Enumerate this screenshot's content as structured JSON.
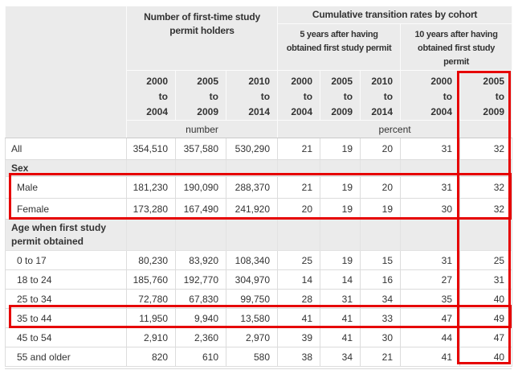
{
  "table": {
    "headers": {
      "number_group_lines": [
        "Number of first-time study",
        "permit holders"
      ],
      "rates_group": "Cumulative transition rates by cohort",
      "five_year_lines": [
        "5 years after having",
        "obtained first study permit"
      ],
      "ten_year_lines": [
        "10 years after having",
        "obtained first study",
        "permit"
      ],
      "year_columns": [
        {
          "start": "2000",
          "sep": "to",
          "end": "2004"
        },
        {
          "start": "2005",
          "sep": "to",
          "end": "2009"
        },
        {
          "start": "2010",
          "sep": "to",
          "end": "2014"
        },
        {
          "start": "2000",
          "sep": "to",
          "end": "2004"
        },
        {
          "start": "2005",
          "sep": "to",
          "end": "2009"
        },
        {
          "start": "2010",
          "sep": "to",
          "end": "2014"
        },
        {
          "start": "2000",
          "sep": "to",
          "end": "2004"
        },
        {
          "start": "2005",
          "sep": "to",
          "end": "2009"
        }
      ],
      "units": {
        "number": "number",
        "percent": "percent"
      }
    },
    "rows": [
      {
        "type": "data",
        "indent": false,
        "label": "All",
        "values": [
          "354,510",
          "357,580",
          "530,290",
          "21",
          "19",
          "20",
          "31",
          "32"
        ]
      },
      {
        "type": "group",
        "label": "Sex"
      },
      {
        "type": "data",
        "indent": true,
        "label": "Male",
        "values": [
          "181,230",
          "190,090",
          "288,370",
          "21",
          "19",
          "20",
          "31",
          "32"
        ]
      },
      {
        "type": "data",
        "indent": true,
        "label": "Female",
        "values": [
          "173,280",
          "167,490",
          "241,920",
          "20",
          "19",
          "19",
          "30",
          "32"
        ]
      },
      {
        "type": "group",
        "label": "Age when first study permit obtained"
      },
      {
        "type": "data",
        "indent": true,
        "label": "0 to 17",
        "values": [
          "80,230",
          "83,920",
          "108,340",
          "25",
          "19",
          "15",
          "31",
          "25"
        ]
      },
      {
        "type": "data",
        "indent": true,
        "label": "18 to 24",
        "values": [
          "185,760",
          "192,770",
          "304,970",
          "14",
          "14",
          "16",
          "27",
          "31"
        ]
      },
      {
        "type": "data",
        "indent": true,
        "label": "25 to 34",
        "values": [
          "72,780",
          "67,830",
          "99,750",
          "28",
          "31",
          "34",
          "35",
          "40"
        ]
      },
      {
        "type": "data",
        "indent": true,
        "label": "35 to 44",
        "values": [
          "11,950",
          "9,940",
          "13,580",
          "41",
          "41",
          "33",
          "47",
          "49"
        ]
      },
      {
        "type": "data",
        "indent": true,
        "label": "45 to 54",
        "values": [
          "2,910",
          "2,360",
          "2,970",
          "39",
          "41",
          "30",
          "44",
          "47"
        ]
      },
      {
        "type": "data",
        "indent": true,
        "label": "55 and older",
        "values": [
          "820",
          "610",
          "580",
          "38",
          "34",
          "21",
          "41",
          "40"
        ]
      }
    ]
  },
  "highlights": {
    "color": "#e60000",
    "boxes": [
      {
        "id": "hl-col",
        "target": "column-2005-to-2009-10-years"
      },
      {
        "id": "hl-sex",
        "target": "rows-male-female"
      },
      {
        "id": "hl-row35",
        "target": "row-35-to-44"
      }
    ]
  },
  "colors": {
    "header_background": "#ebebeb",
    "row_background": "#ffffff",
    "border": "#dcdcdc",
    "text": "#333333"
  }
}
